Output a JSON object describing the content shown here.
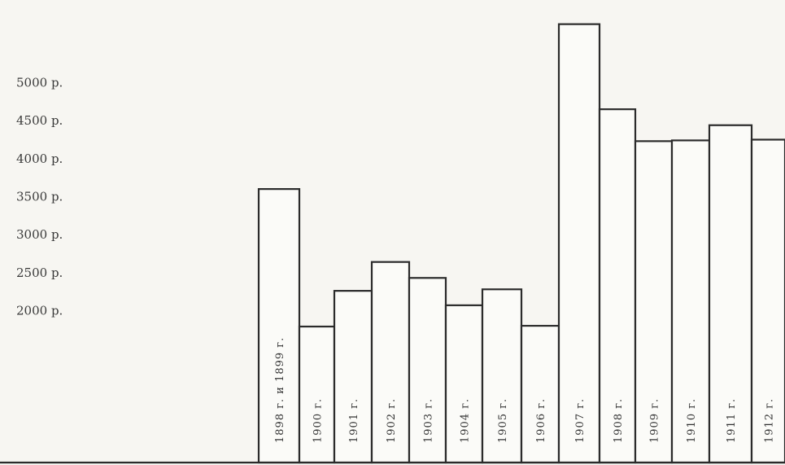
{
  "chart_data": {
    "type": "bar",
    "categories": [
      "1898 г. и 1899 г.",
      "1900 г.",
      "1901 г.",
      "1902 г.",
      "1903 г.",
      "1904 г.",
      "1905 г.",
      "1906 г.",
      "1907 г.",
      "1908 г.",
      "1909 г.",
      "1910 г.",
      "1911 г.",
      "1912 г."
    ],
    "values": [
      3600,
      1790,
      2260,
      2640,
      2430,
      2070,
      2280,
      1800,
      5770,
      4650,
      4230,
      4240,
      4440,
      4250
    ],
    "yticks": [
      "5000 р.",
      "4500 р.",
      "4000 р.",
      "3500 р.",
      "3000 р.",
      "2500 р.",
      "2000 р."
    ],
    "ytick_values": [
      5000,
      4500,
      4000,
      3500,
      3000,
      2500,
      2000
    ],
    "title": "",
    "xlabel": "",
    "ylabel": "",
    "grid": false,
    "colors": {
      "bar_fill": "#fbfbf8",
      "bar_stroke": "#2b2b2b",
      "background": "#f7f6f2"
    }
  }
}
